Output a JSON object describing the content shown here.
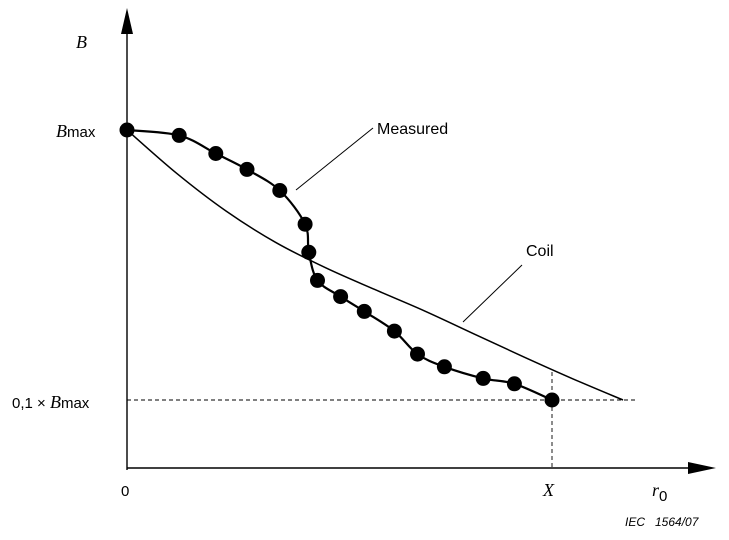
{
  "chart_data": {
    "type": "line",
    "title": "",
    "xlabel": "r0",
    "ylabel": "B",
    "y_tick_labels": {
      "bmax": "Bmax",
      "tenth": "0,1 × Bmax"
    },
    "x_tick_labels": {
      "origin": "0",
      "x_mark": "X"
    },
    "reference_values": {
      "x_mark": 0.79,
      "y_tenth": 0.1
    },
    "xlim": [
      0,
      1.1
    ],
    "ylim": [
      -0.12,
      1.35
    ],
    "series": [
      {
        "name": "Measured",
        "markers": true,
        "x": [
          0.0,
          0.097,
          0.165,
          0.223,
          0.284,
          0.331,
          0.338,
          0.354,
          0.397,
          0.441,
          0.497,
          0.54,
          0.59,
          0.662,
          0.72,
          0.79
        ],
        "y": [
          1.0,
          0.98,
          0.913,
          0.854,
          0.776,
          0.651,
          0.547,
          0.443,
          0.383,
          0.328,
          0.255,
          0.17,
          0.123,
          0.08,
          0.06,
          0.0
        ]
      },
      {
        "name": "Coil",
        "markers": false,
        "x": [
          0.0,
          0.092,
          0.184,
          0.276,
          0.369,
          0.461,
          0.553,
          0.645,
          0.737,
          0.829,
          0.922
        ],
        "y": [
          1.0,
          0.84,
          0.7,
          0.584,
          0.49,
          0.409,
          0.33,
          0.245,
          0.16,
          0.078,
          0.0
        ]
      }
    ],
    "annotations": [
      "Measured",
      "Coil"
    ],
    "legend": "none",
    "grid": false
  },
  "credit": "IEC   1564/07"
}
